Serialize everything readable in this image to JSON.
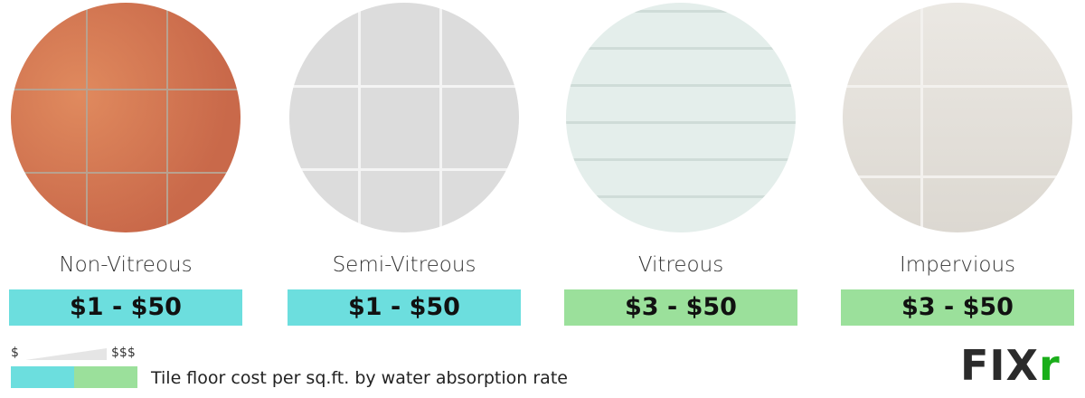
{
  "tiles": [
    {
      "name": "Non-Vitreous",
      "price": "$1 - $50",
      "tier": "low",
      "color": "#6cdede"
    },
    {
      "name": "Semi-Vitreous",
      "price": "$1 - $50",
      "tier": "low",
      "color": "#6cdede"
    },
    {
      "name": "Vitreous",
      "price": "$3 - $50",
      "tier": "high",
      "color": "#9be09b"
    },
    {
      "name": "Impervious",
      "price": "$3 - $50",
      "tier": "high",
      "color": "#9be09b"
    }
  ],
  "legend": {
    "low_label": "$",
    "high_label": "$$$",
    "caption": "Tile floor cost per sq.ft. by water absorption rate",
    "low_color": "#6cdede",
    "high_color": "#9be09b"
  },
  "logo": {
    "text_main": "FIX",
    "text_accent": "r",
    "accent_color": "#1aae1a"
  }
}
